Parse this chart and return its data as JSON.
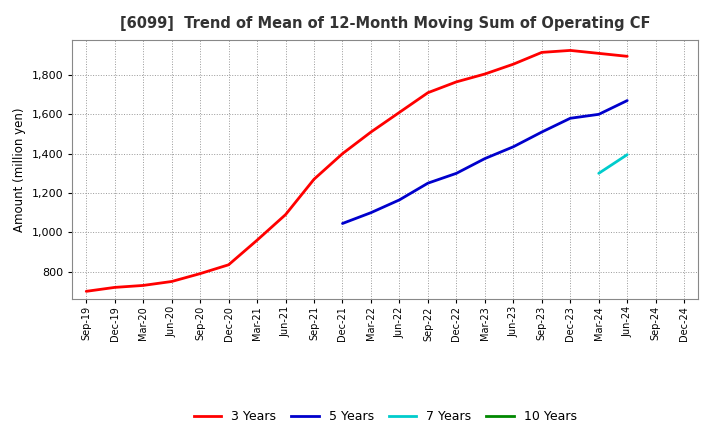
{
  "title": "[6099]  Trend of Mean of 12-Month Moving Sum of Operating CF",
  "ylabel": "Amount (million yen)",
  "ylim": [
    660,
    1980
  ],
  "yticks": [
    800,
    1000,
    1200,
    1400,
    1600,
    1800
  ],
  "background_color": "#ffffff",
  "plot_bg_color": "#ffffff",
  "grid_color": "#aaaaaa",
  "x_labels": [
    "Sep-19",
    "Dec-19",
    "Mar-20",
    "Jun-20",
    "Sep-20",
    "Dec-20",
    "Mar-21",
    "Jun-21",
    "Sep-21",
    "Dec-21",
    "Mar-22",
    "Jun-22",
    "Sep-22",
    "Dec-22",
    "Mar-23",
    "Jun-23",
    "Sep-23",
    "Dec-23",
    "Mar-24",
    "Jun-24",
    "Sep-24",
    "Dec-24"
  ],
  "series": {
    "3 Years": {
      "color": "#ff0000",
      "data": [
        700,
        720,
        730,
        750,
        790,
        835,
        960,
        1090,
        1270,
        1400,
        1510,
        1610,
        1710,
        1765,
        1805,
        1855,
        1915,
        1925,
        1910,
        1895,
        null,
        null
      ]
    },
    "5 Years": {
      "color": "#0000cc",
      "data": [
        null,
        null,
        null,
        null,
        null,
        null,
        null,
        null,
        null,
        1045,
        1100,
        1165,
        1250,
        1300,
        1375,
        1435,
        1510,
        1580,
        1600,
        1670,
        null,
        null
      ]
    },
    "7 Years": {
      "color": "#00cccc",
      "data": [
        null,
        null,
        null,
        null,
        null,
        null,
        null,
        null,
        null,
        null,
        null,
        null,
        null,
        null,
        null,
        null,
        null,
        null,
        1300,
        1395,
        null,
        null
      ]
    },
    "10 Years": {
      "color": "#008800",
      "data": [
        null,
        null,
        null,
        null,
        null,
        null,
        null,
        null,
        null,
        null,
        null,
        null,
        null,
        null,
        null,
        null,
        null,
        null,
        null,
        null,
        null,
        null
      ]
    }
  },
  "legend_labels": [
    "3 Years",
    "5 Years",
    "7 Years",
    "10 Years"
  ],
  "legend_colors": [
    "#ff0000",
    "#0000cc",
    "#00cccc",
    "#008800"
  ]
}
